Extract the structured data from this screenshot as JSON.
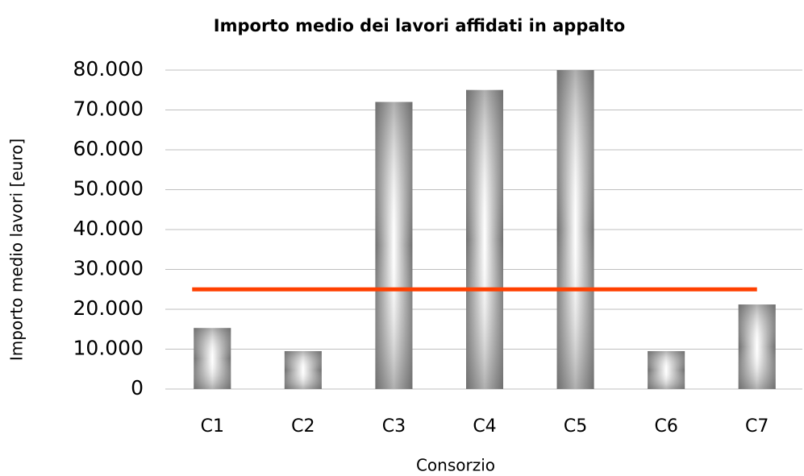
{
  "chart_data": {
    "type": "bar",
    "title": "Importo medio dei lavori affidati in appalto",
    "x_label": "Consorzio",
    "y_label": "Importo medio  lavori [euro]",
    "categories": [
      "C1",
      "C2",
      "C3",
      "C4",
      "C5",
      "C6",
      "C7"
    ],
    "values": [
      15300,
      9500,
      72000,
      75000,
      80000,
      9500,
      21200
    ],
    "color": "#6e6e6e",
    "reference_line": {
      "value": 25000,
      "color": "#ff4000"
    },
    "ylim": [
      0,
      80000
    ],
    "yticks": [
      0,
      {
        "value": 10000,
        "label": "10.000"
      },
      {
        "value": 20000,
        "label": "20.000"
      },
      {
        "value": 30000,
        "label": "30.000"
      },
      {
        "value": 40000,
        "label": "40.000"
      },
      {
        "value": 50000,
        "label": "50.000"
      },
      {
        "value": 60000,
        "label": "60.000"
      },
      {
        "value": 70000,
        "label": "70.000"
      },
      {
        "value": 80000,
        "label": "80.000"
      }
    ],
    "grid": true
  }
}
